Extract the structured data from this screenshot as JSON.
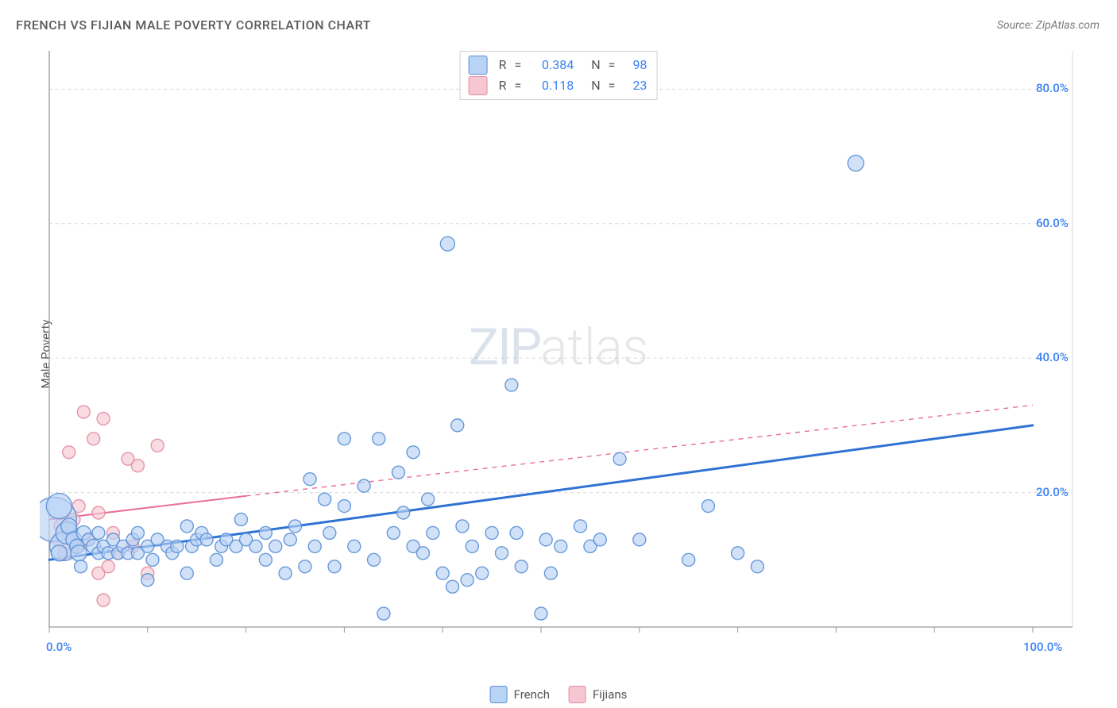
{
  "title": "FRENCH VS FIJIAN MALE POVERTY CORRELATION CHART",
  "source": "Source: ZipAtlas.com",
  "ylabel": "Male Poverty",
  "watermark": {
    "part1": "ZIP",
    "part2": "atlas"
  },
  "chart": {
    "type": "scatter",
    "xlim": [
      0,
      100
    ],
    "ylim": [
      0,
      85
    ],
    "xtick_labels": {
      "min": "0.0%",
      "max": "100.0%"
    },
    "xtick_positions_minor": [
      0,
      10,
      20,
      30,
      40,
      50,
      60,
      70,
      80,
      90,
      100
    ],
    "ytick_labels": [
      "20.0%",
      "40.0%",
      "60.0%",
      "80.0%"
    ],
    "ytick_positions": [
      20,
      40,
      60,
      80
    ],
    "ygrid_dash": "4,4",
    "axis_color": "#9a9a9a",
    "grid_color": "#d9d9d9",
    "background_color": "#ffffff",
    "tick_label_color": "#3b82f6",
    "series": [
      {
        "name": "French",
        "fill_color": "#b9d3f5",
        "stroke_color": "#5a8fd6",
        "fill_opacity": 0.65,
        "stroke_opacity": 0.9,
        "marker_radius_default": 8,
        "trend_line": {
          "solid": {
            "x1": 0,
            "y1": 10,
            "x2": 100,
            "y2": 30
          },
          "dash": null,
          "color": "#2f72d4",
          "width": 3
        },
        "stats": {
          "R": "0.384",
          "N": "98"
        },
        "points": [
          {
            "x": 0.5,
            "y": 16,
            "r": 28
          },
          {
            "x": 1,
            "y": 18,
            "r": 16
          },
          {
            "x": 1.5,
            "y": 12,
            "r": 18
          },
          {
            "x": 1.8,
            "y": 14,
            "r": 14
          },
          {
            "x": 1,
            "y": 11,
            "r": 10
          },
          {
            "x": 2,
            "y": 15,
            "r": 10
          },
          {
            "x": 2.5,
            "y": 13,
            "r": 10
          },
          {
            "x": 2.8,
            "y": 12,
            "r": 9
          },
          {
            "x": 3,
            "y": 11,
            "r": 10
          },
          {
            "x": 3.2,
            "y": 9,
            "r": 8
          },
          {
            "x": 3.5,
            "y": 14,
            "r": 9
          },
          {
            "x": 4,
            "y": 13,
            "r": 8
          },
          {
            "x": 4.5,
            "y": 12,
            "r": 9
          },
          {
            "x": 5,
            "y": 11,
            "r": 8
          },
          {
            "x": 5,
            "y": 14,
            "r": 8
          },
          {
            "x": 5.5,
            "y": 12,
            "r": 8
          },
          {
            "x": 6,
            "y": 11,
            "r": 8
          },
          {
            "x": 6.5,
            "y": 13,
            "r": 8
          },
          {
            "x": 7,
            "y": 11,
            "r": 8
          },
          {
            "x": 7.5,
            "y": 12,
            "r": 8
          },
          {
            "x": 8,
            "y": 11,
            "r": 8
          },
          {
            "x": 8.5,
            "y": 13,
            "r": 8
          },
          {
            "x": 9,
            "y": 14,
            "r": 8
          },
          {
            "x": 9,
            "y": 11,
            "r": 8
          },
          {
            "x": 10,
            "y": 12,
            "r": 8
          },
          {
            "x": 10.5,
            "y": 10,
            "r": 8
          },
          {
            "x": 11,
            "y": 13,
            "r": 8
          },
          {
            "x": 12,
            "y": 12,
            "r": 8
          },
          {
            "x": 12.5,
            "y": 11,
            "r": 8
          },
          {
            "x": 13,
            "y": 12,
            "r": 8
          },
          {
            "x": 14,
            "y": 15,
            "r": 8
          },
          {
            "x": 14.5,
            "y": 12,
            "r": 8
          },
          {
            "x": 15,
            "y": 13,
            "r": 8
          },
          {
            "x": 15.5,
            "y": 14,
            "r": 8
          },
          {
            "x": 16,
            "y": 13,
            "r": 8
          },
          {
            "x": 17,
            "y": 10,
            "r": 8
          },
          {
            "x": 17.5,
            "y": 12,
            "r": 8
          },
          {
            "x": 18,
            "y": 13,
            "r": 8
          },
          {
            "x": 19,
            "y": 12,
            "r": 8
          },
          {
            "x": 19.5,
            "y": 16,
            "r": 8
          },
          {
            "x": 20,
            "y": 13,
            "r": 8
          },
          {
            "x": 21,
            "y": 12,
            "r": 8
          },
          {
            "x": 22,
            "y": 14,
            "r": 8
          },
          {
            "x": 22,
            "y": 10,
            "r": 8
          },
          {
            "x": 23,
            "y": 12,
            "r": 8
          },
          {
            "x": 24,
            "y": 8,
            "r": 8
          },
          {
            "x": 24.5,
            "y": 13,
            "r": 8
          },
          {
            "x": 25,
            "y": 15,
            "r": 8
          },
          {
            "x": 26,
            "y": 9,
            "r": 8
          },
          {
            "x": 26.5,
            "y": 22,
            "r": 8
          },
          {
            "x": 27,
            "y": 12,
            "r": 8
          },
          {
            "x": 28,
            "y": 19,
            "r": 8
          },
          {
            "x": 28.5,
            "y": 14,
            "r": 8
          },
          {
            "x": 29,
            "y": 9,
            "r": 8
          },
          {
            "x": 30,
            "y": 28,
            "r": 8
          },
          {
            "x": 30,
            "y": 18,
            "r": 8
          },
          {
            "x": 31,
            "y": 12,
            "r": 8
          },
          {
            "x": 32,
            "y": 21,
            "r": 8
          },
          {
            "x": 33,
            "y": 10,
            "r": 8
          },
          {
            "x": 33.5,
            "y": 28,
            "r": 8
          },
          {
            "x": 34,
            "y": 2,
            "r": 8
          },
          {
            "x": 35,
            "y": 14,
            "r": 8
          },
          {
            "x": 35.5,
            "y": 23,
            "r": 8
          },
          {
            "x": 36,
            "y": 17,
            "r": 8
          },
          {
            "x": 37,
            "y": 12,
            "r": 8
          },
          {
            "x": 37,
            "y": 26,
            "r": 8
          },
          {
            "x": 38,
            "y": 11,
            "r": 8
          },
          {
            "x": 38.5,
            "y": 19,
            "r": 8
          },
          {
            "x": 39,
            "y": 14,
            "r": 8
          },
          {
            "x": 40,
            "y": 8,
            "r": 8
          },
          {
            "x": 40.5,
            "y": 57,
            "r": 9
          },
          {
            "x": 41,
            "y": 6,
            "r": 8
          },
          {
            "x": 41.5,
            "y": 30,
            "r": 8
          },
          {
            "x": 42,
            "y": 15,
            "r": 8
          },
          {
            "x": 42.5,
            "y": 7,
            "r": 8
          },
          {
            "x": 43,
            "y": 12,
            "r": 8
          },
          {
            "x": 44,
            "y": 8,
            "r": 8
          },
          {
            "x": 45,
            "y": 14,
            "r": 8
          },
          {
            "x": 46,
            "y": 11,
            "r": 8
          },
          {
            "x": 47,
            "y": 36,
            "r": 8
          },
          {
            "x": 47.5,
            "y": 14,
            "r": 8
          },
          {
            "x": 48,
            "y": 9,
            "r": 8
          },
          {
            "x": 50,
            "y": 2,
            "r": 8
          },
          {
            "x": 50.5,
            "y": 13,
            "r": 8
          },
          {
            "x": 51,
            "y": 8,
            "r": 8
          },
          {
            "x": 52,
            "y": 12,
            "r": 8
          },
          {
            "x": 54,
            "y": 15,
            "r": 8
          },
          {
            "x": 55,
            "y": 12,
            "r": 8
          },
          {
            "x": 56,
            "y": 13,
            "r": 8
          },
          {
            "x": 58,
            "y": 25,
            "r": 8
          },
          {
            "x": 60,
            "y": 13,
            "r": 8
          },
          {
            "x": 65,
            "y": 10,
            "r": 8
          },
          {
            "x": 67,
            "y": 18,
            "r": 8
          },
          {
            "x": 70,
            "y": 11,
            "r": 8
          },
          {
            "x": 72,
            "y": 9,
            "r": 8
          },
          {
            "x": 82,
            "y": 69,
            "r": 10
          },
          {
            "x": 10,
            "y": 7,
            "r": 8
          },
          {
            "x": 14,
            "y": 8,
            "r": 8
          }
        ]
      },
      {
        "name": "Fijians",
        "fill_color": "#f6c7d2",
        "stroke_color": "#e48aa4",
        "fill_opacity": 0.65,
        "stroke_opacity": 0.9,
        "marker_radius_default": 8,
        "trend_line": {
          "solid": {
            "x1": 0,
            "y1": 16,
            "x2": 20,
            "y2": 19.5
          },
          "dash": {
            "x1": 20,
            "y1": 19.5,
            "x2": 100,
            "y2": 33
          },
          "color": "#e86f94",
          "width": 2
        },
        "stats": {
          "R": "0.118",
          "N": "23"
        },
        "points": [
          {
            "x": 1,
            "y": 13,
            "r": 9
          },
          {
            "x": 1.2,
            "y": 15,
            "r": 9
          },
          {
            "x": 1.5,
            "y": 11,
            "r": 8
          },
          {
            "x": 2,
            "y": 14,
            "r": 9
          },
          {
            "x": 2,
            "y": 26,
            "r": 8
          },
          {
            "x": 2.5,
            "y": 16,
            "r": 8
          },
          {
            "x": 3,
            "y": 12,
            "r": 8
          },
          {
            "x": 3.5,
            "y": 32,
            "r": 8
          },
          {
            "x": 4,
            "y": 13,
            "r": 8
          },
          {
            "x": 4.5,
            "y": 28,
            "r": 8
          },
          {
            "x": 5,
            "y": 17,
            "r": 8
          },
          {
            "x": 5,
            "y": 8,
            "r": 8
          },
          {
            "x": 5.5,
            "y": 31,
            "r": 8
          },
          {
            "x": 6,
            "y": 9,
            "r": 8
          },
          {
            "x": 6.5,
            "y": 14,
            "r": 8
          },
          {
            "x": 7,
            "y": 11,
            "r": 8
          },
          {
            "x": 8,
            "y": 25,
            "r": 8
          },
          {
            "x": 8.5,
            "y": 12,
            "r": 8
          },
          {
            "x": 9,
            "y": 24,
            "r": 8
          },
          {
            "x": 10,
            "y": 8,
            "r": 8
          },
          {
            "x": 11,
            "y": 27,
            "r": 8
          },
          {
            "x": 5.5,
            "y": 4,
            "r": 8
          },
          {
            "x": 3,
            "y": 18,
            "r": 8
          }
        ]
      }
    ]
  },
  "legend_top": [
    {
      "swatch_fill": "#b9d3f5",
      "swatch_stroke": "#5a8fd6",
      "R": "0.384",
      "N": "98"
    },
    {
      "swatch_fill": "#f6c7d2",
      "swatch_stroke": "#e48aa4",
      "R": "0.118",
      "N": "23"
    }
  ],
  "legend_bottom": [
    {
      "swatch_fill": "#b9d3f5",
      "swatch_stroke": "#5a8fd6",
      "label": "French"
    },
    {
      "swatch_fill": "#f6c7d2",
      "swatch_stroke": "#e48aa4",
      "label": "Fijians"
    }
  ]
}
